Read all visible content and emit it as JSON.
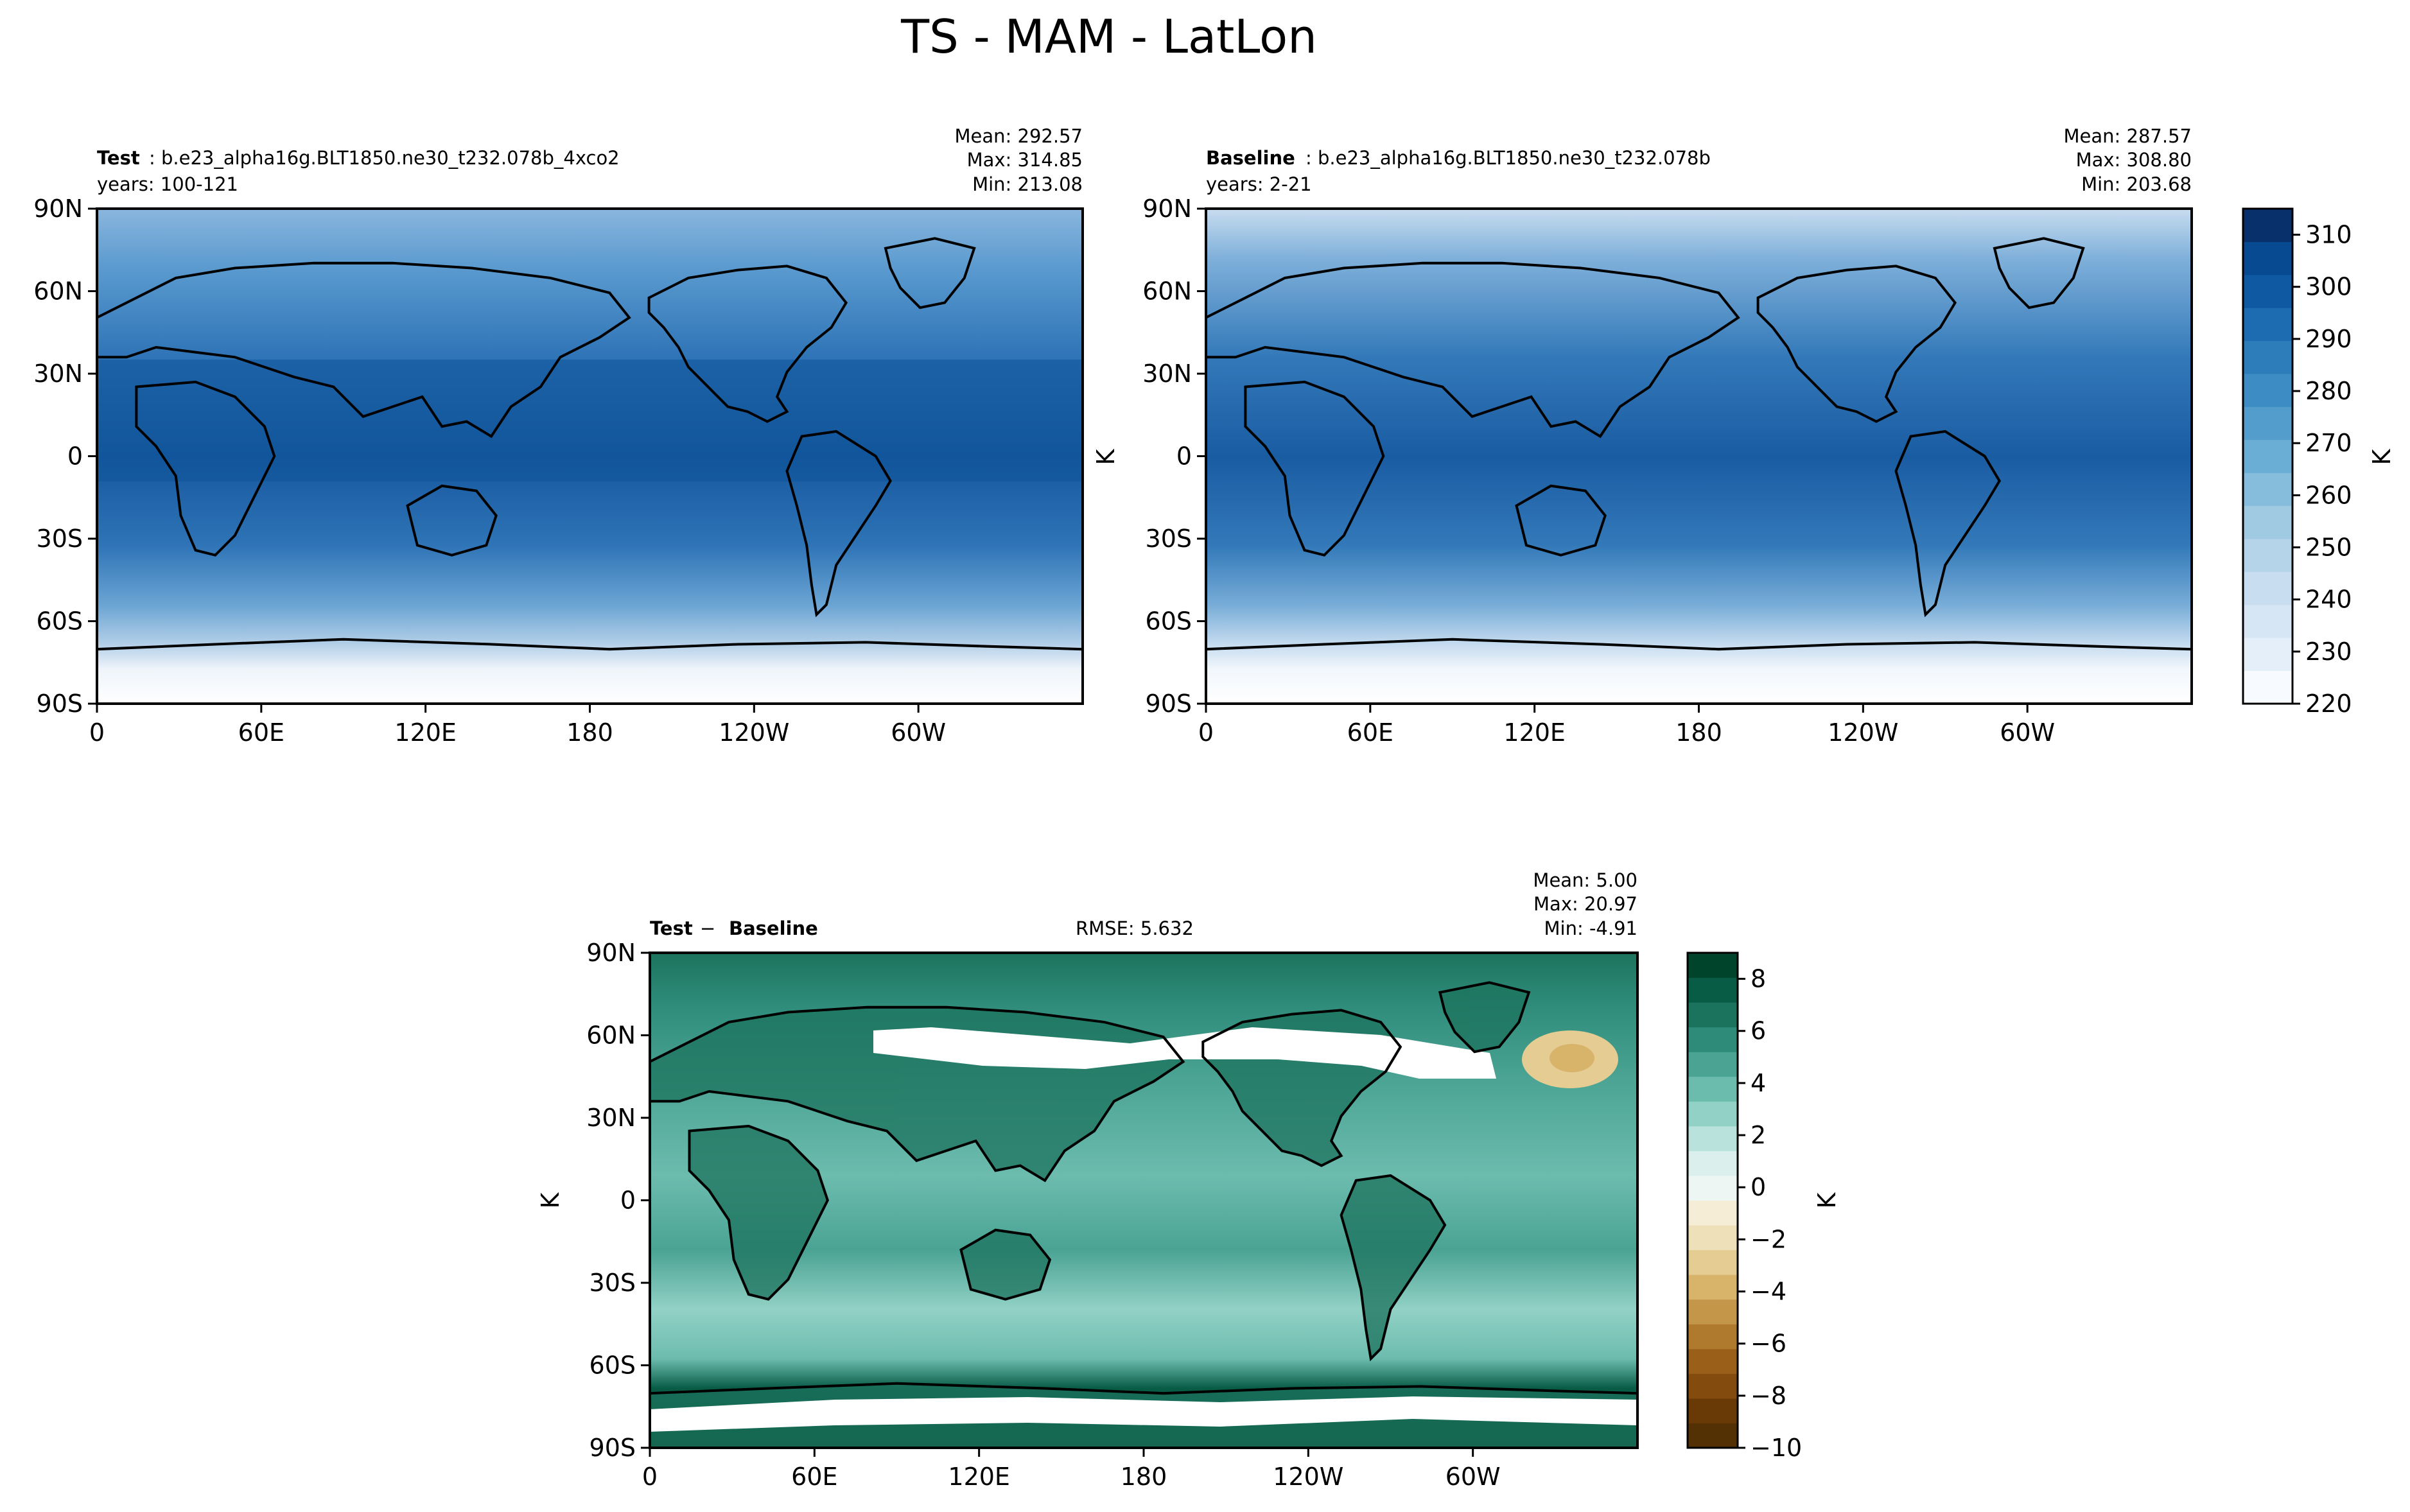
{
  "figure": {
    "title": "TS - MAM - LatLon"
  },
  "colors": {
    "blues": [
      "#f7fbff",
      "#e5eff9",
      "#d7e6f5",
      "#c8ddf0",
      "#b5d4e9",
      "#a0c9e2",
      "#86bcdc",
      "#6aaed6",
      "#529dcc",
      "#3d8dc4",
      "#2d7dbb",
      "#1d6cb1",
      "#0e59a2",
      "#084a91",
      "#08306b"
    ],
    "bluegreen": [
      "#00442c",
      "#085c46",
      "#1c735d",
      "#2e8b79",
      "#4aa393",
      "#6cbcae",
      "#92d1c6",
      "#b9e2dc",
      "#dbefec",
      "#eef6f4"
    ],
    "browngold": [
      "#f6edd6",
      "#eee0b8",
      "#e4cc92",
      "#d7b46a",
      "#c4964a",
      "#b07a2e",
      "#9a601a",
      "#834c0e",
      "#6a3a06",
      "#543005"
    ]
  },
  "chart_data": [
    {
      "type": "contour-map",
      "name": "test",
      "title_bold": "Test",
      "title_rest": ": b.e23_alpha16g.BLT1850.ne30_t232.078b_4xco2",
      "years": "years: 100-121",
      "stats": [
        "Mean: 292.57",
        "Max: 314.85",
        "Min: 213.08"
      ],
      "mean": 292.57,
      "max": 314.85,
      "min": 213.08,
      "ylabel": "",
      "x_ticks": [
        "0",
        "60E",
        "120E",
        "180",
        "120W",
        "60W"
      ],
      "y_ticks": [
        "90N",
        "60N",
        "30N",
        "0",
        "30S",
        "60S",
        "90S"
      ]
    },
    {
      "type": "contour-map",
      "name": "baseline",
      "title_bold": "Baseline",
      "title_rest": ": b.e23_alpha16g.BLT1850.ne30_t232.078b",
      "years": "years: 2-21",
      "stats": [
        "Mean: 287.57",
        "Max: 308.80",
        "Min: 203.68"
      ],
      "mean": 287.57,
      "max": 308.8,
      "min": 203.68,
      "ylabel": "K",
      "x_ticks": [
        "0",
        "60E",
        "120E",
        "180",
        "120W",
        "60W"
      ],
      "y_ticks": [
        "90N",
        "60N",
        "30N",
        "0",
        "30S",
        "60S",
        "90S"
      ]
    },
    {
      "type": "contour-map",
      "name": "difference",
      "title_bold_a": "Test",
      "title_sep": " − ",
      "title_bold_b": "Baseline",
      "rmse": "RMSE: 5.632",
      "stats": [
        "Mean:  5.00",
        "Max: 20.97",
        "Min: -4.91"
      ],
      "mean": 5.0,
      "max": 20.97,
      "min": -4.91,
      "ylabel": "K",
      "x_ticks": [
        "0",
        "60E",
        "120E",
        "180",
        "120W",
        "60W"
      ],
      "y_ticks": [
        "90N",
        "60N",
        "30N",
        "0",
        "30S",
        "60S",
        "90S"
      ]
    }
  ],
  "colorbars": {
    "main": {
      "label": "K",
      "range": [
        220,
        315
      ],
      "ticks": [
        "310",
        "300",
        "290",
        "280",
        "270",
        "260",
        "250",
        "240",
        "230",
        "220"
      ],
      "tick_values": [
        310,
        300,
        290,
        280,
        270,
        260,
        250,
        240,
        230,
        220
      ]
    },
    "diff": {
      "label": "K",
      "range": [
        -10,
        9
      ],
      "ticks": [
        "8",
        "6",
        "4",
        "2",
        "0",
        "−2",
        "−4",
        "−6",
        "−8",
        "−10"
      ],
      "tick_values": [
        8,
        6,
        4,
        2,
        0,
        -2,
        -4,
        -6,
        -8,
        -10
      ]
    }
  }
}
